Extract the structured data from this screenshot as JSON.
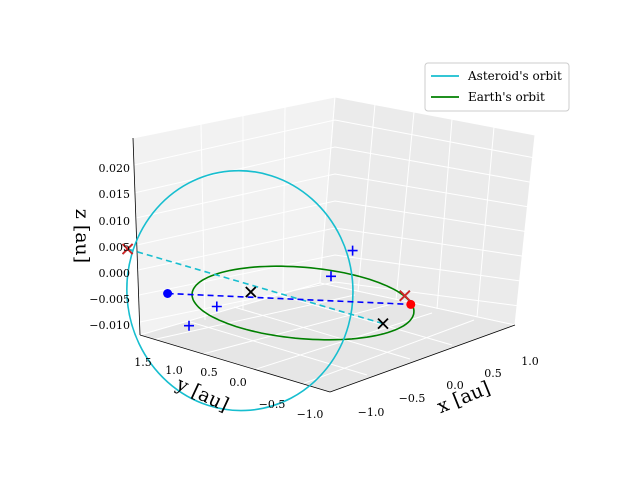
{
  "chart_data": {
    "type": "line",
    "projection": "3d",
    "xlabel": "x [au]",
    "ylabel": "y [au]",
    "zlabel": "z [au]",
    "xticks": [
      "−1.0",
      "−0.5",
      "0.0",
      "0.5",
      "1.0"
    ],
    "yticks": [
      "−1.0",
      "−0.5",
      "0.0",
      "0.5",
      "1.0",
      "1.5"
    ],
    "zticks": [
      "−0.010",
      "−0.005",
      "0.000",
      "0.005",
      "0.010",
      "0.015",
      "0.020"
    ],
    "grid": true,
    "legend_location": "upper right",
    "series": [
      {
        "name": "Asteroid's orbit",
        "color": "#17becf",
        "style": "solid",
        "shape": "ellipse",
        "center": [
          -0.35,
          0.45,
          0.005
        ],
        "semi_axes": {
          "major": 1.3,
          "minor": 1.1
        }
      },
      {
        "name": "Earth's orbit",
        "color": "#008000",
        "style": "solid",
        "shape": "circle",
        "center": [
          0,
          0,
          0
        ],
        "radius": 1.0
      }
    ],
    "lines_of_nodes": [
      {
        "color": "#17becf",
        "style": "dashed",
        "from": [
          -0.9,
          1.3,
          0.023
        ],
        "to": [
          0.4,
          -0.6,
          -0.008
        ]
      },
      {
        "color": "#0000ff",
        "style": "dashed",
        "from": [
          -0.7,
          1.0,
          0.0
        ],
        "to": [
          0.7,
          -0.7,
          0.0
        ]
      }
    ],
    "points": [
      {
        "marker": "dot",
        "color": "#ff0000",
        "xyz": [
          0.7,
          -0.7,
          0.0
        ]
      },
      {
        "marker": "dot",
        "color": "#0000ff",
        "xyz": [
          -0.7,
          1.0,
          0.0
        ]
      },
      {
        "marker": "x",
        "color": "#000000",
        "xyz": [
          -0.9,
          1.3,
          0.023
        ]
      },
      {
        "marker": "x",
        "color": "#000000",
        "xyz": [
          0.4,
          -0.6,
          -0.008
        ]
      },
      {
        "marker": "x",
        "color": "#000000",
        "xyz": [
          -0.1,
          0.5,
          0.0
        ]
      },
      {
        "marker": "x",
        "color": "#000000",
        "xyz": [
          0.9,
          -0.5,
          -0.001
        ]
      },
      {
        "marker": "x",
        "color": "#d62728",
        "xyz": [
          -0.9,
          1.3,
          0.023
        ]
      },
      {
        "marker": "x",
        "color": "#d62728",
        "xyz": [
          0.9,
          -0.5,
          -0.001
        ]
      },
      {
        "marker": "plus",
        "color": "#0000ff",
        "xyz": [
          0.8,
          0.0,
          0.018
        ]
      },
      {
        "marker": "plus",
        "color": "#0000ff",
        "xyz": [
          0.6,
          0.1,
          0.005
        ]
      },
      {
        "marker": "plus",
        "color": "#0000ff",
        "xyz": [
          -0.5,
          0.6,
          -0.004
        ]
      },
      {
        "marker": "plus",
        "color": "#0000ff",
        "xyz": [
          -0.8,
          0.7,
          -0.012
        ]
      }
    ]
  }
}
